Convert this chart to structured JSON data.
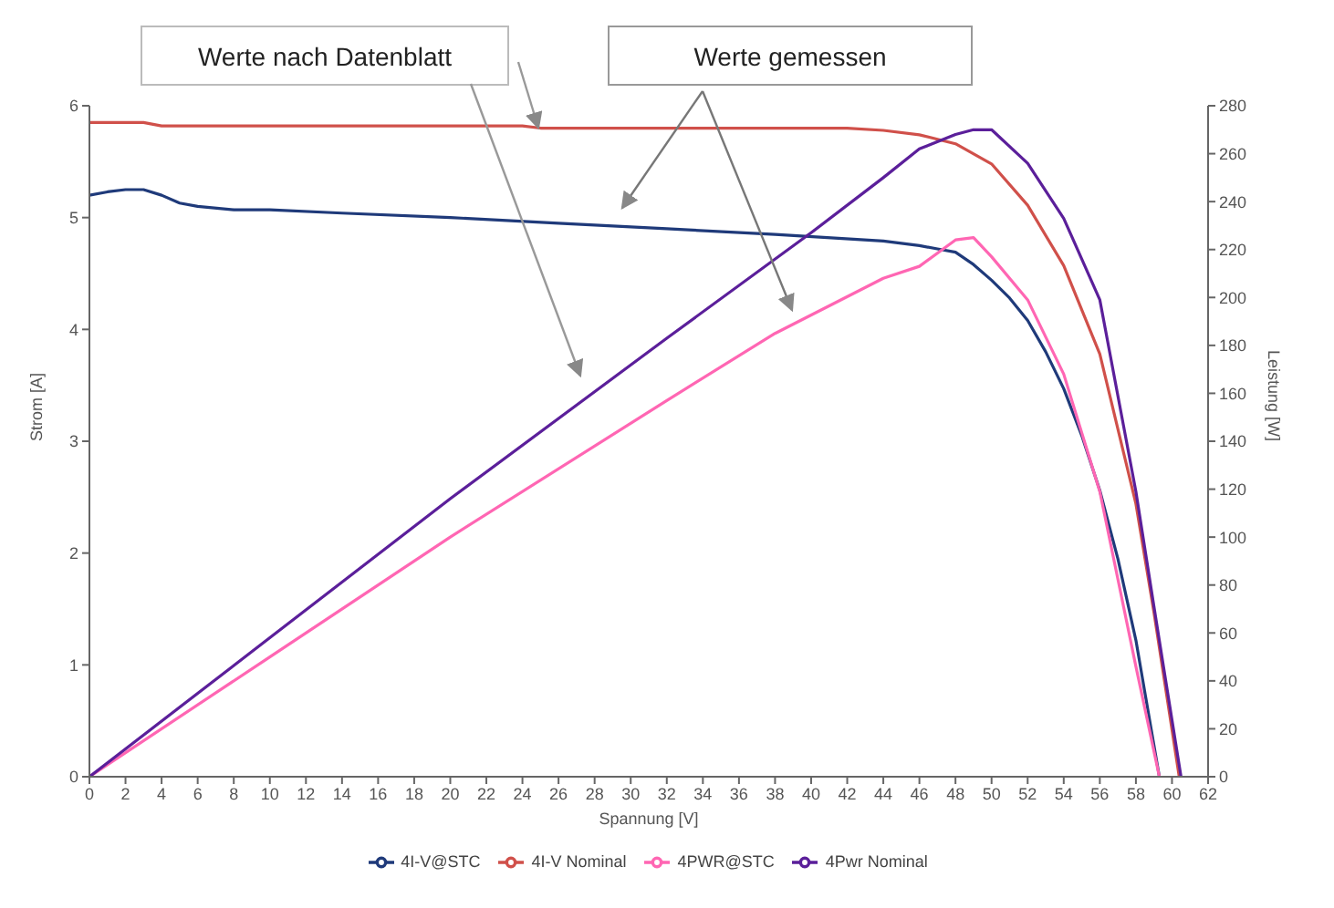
{
  "chart_data": {
    "type": "line",
    "xlabel": "Spannung [V]",
    "ylabel": "Strom [A]",
    "y2label": "Leistung [W]",
    "xlim": [
      0,
      62
    ],
    "xticks": [
      0,
      2,
      4,
      6,
      8,
      10,
      12,
      14,
      16,
      18,
      20,
      22,
      24,
      26,
      28,
      30,
      32,
      34,
      36,
      38,
      40,
      42,
      44,
      46,
      48,
      50,
      52,
      54,
      56,
      58,
      60,
      62
    ],
    "ylim": [
      0,
      6
    ],
    "yticks": [
      0,
      1,
      2,
      3,
      4,
      5,
      6
    ],
    "y2lim": [
      0,
      280
    ],
    "y2ticks": [
      0,
      20,
      40,
      60,
      80,
      100,
      120,
      140,
      160,
      180,
      200,
      220,
      240,
      260,
      280
    ],
    "legend": "bottom",
    "grid": false,
    "annotations": [
      "Werte nach Datenblatt",
      "Werte gemessen"
    ],
    "series": [
      {
        "name": "4I-V@STC",
        "color": "#1f3a7a",
        "x": [
          0,
          1,
          2,
          3,
          4,
          5,
          6,
          8,
          10,
          14,
          20,
          26,
          32,
          38,
          44,
          46,
          47,
          48,
          49,
          50,
          51,
          52,
          53,
          54,
          55,
          56,
          57,
          58,
          59.3
        ],
        "values": [
          5.2,
          5.23,
          5.25,
          5.25,
          5.2,
          5.13,
          5.1,
          5.07,
          5.07,
          5.04,
          5.0,
          4.95,
          4.9,
          4.85,
          4.79,
          4.75,
          4.72,
          4.69,
          4.58,
          4.44,
          4.28,
          4.08,
          3.8,
          3.47,
          3.05,
          2.56,
          1.95,
          1.22,
          0
        ]
      },
      {
        "name": "4I-V Nominal",
        "color": "#d0504a",
        "x": [
          0,
          3,
          4,
          24,
          25,
          42,
          44,
          46,
          48,
          50,
          52,
          54,
          56,
          58,
          59,
          60.4
        ],
        "values": [
          5.85,
          5.85,
          5.82,
          5.82,
          5.8,
          5.8,
          5.78,
          5.74,
          5.66,
          5.48,
          5.11,
          4.57,
          3.78,
          2.44,
          1.47,
          0
        ]
      },
      {
        "name": "4PWR@STC",
        "color": "#ff66b3",
        "axis": "y2",
        "x": [
          0,
          10,
          20,
          32,
          38,
          44,
          46,
          48,
          49,
          50,
          52,
          54,
          56,
          58,
          59.3
        ],
        "values": [
          0,
          50,
          100,
          157,
          185,
          208,
          213,
          224,
          225,
          217,
          199,
          168,
          119,
          46,
          0
        ]
      },
      {
        "name": "4Pwr Nominal",
        "color": "#5b1f9a",
        "axis": "y2",
        "x": [
          0,
          10,
          20,
          32,
          40,
          44,
          46,
          48,
          49,
          50,
          52,
          54,
          56,
          58,
          59,
          60.5
        ],
        "values": [
          0,
          58,
          116,
          183,
          227,
          250,
          262,
          268,
          270,
          270,
          256,
          233,
          199,
          119,
          71,
          0
        ]
      }
    ]
  }
}
